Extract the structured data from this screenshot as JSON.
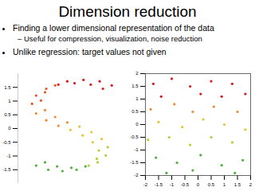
{
  "title": "Dimension reduction",
  "bullets": [
    {
      "text": "Finding a lower dimensional representation of the data",
      "sub": [
        "Useful for compression, visualization, noise reduction"
      ]
    },
    {
      "text": "Unlike regression: target values not given",
      "sub": []
    }
  ],
  "chart_data": [
    {
      "type": "scatter",
      "x": [
        0.9,
        0.6,
        0.2,
        -0.2,
        -0.5,
        -0.75,
        -0.85,
        -0.75,
        -0.5,
        -0.2,
        0.1,
        0.4,
        0.65,
        0.8,
        0.75,
        0.55,
        0.25,
        -0.1,
        -0.45,
        -0.75,
        1.12,
        0.82,
        0.42,
        0.02,
        -0.28,
        -0.53,
        -0.63,
        -0.53,
        -0.28,
        0.02,
        0.32,
        0.62,
        0.87,
        1.02,
        0.97,
        0.77,
        0.47,
        0.12,
        -0.23,
        -0.53
      ],
      "y": [
        1.45,
        1.6,
        1.65,
        1.6,
        1.45,
        1.2,
        0.9,
        0.55,
        0.3,
        0.1,
        -0.05,
        -0.25,
        -0.5,
        -0.8,
        -1.1,
        -1.35,
        -1.5,
        -1.55,
        -1.5,
        -1.35,
        1.57,
        1.72,
        1.77,
        1.72,
        1.57,
        1.32,
        1.02,
        0.67,
        0.42,
        0.22,
        0.07,
        -0.13,
        -0.38,
        -0.68,
        -0.98,
        -1.23,
        -1.38,
        -1.43,
        -1.38,
        -1.23
      ],
      "colors": [
        "#d7191c",
        "#d7191c",
        "#d7191c",
        "#d7191c",
        "#e8552a",
        "#e8552a",
        "#e8552a",
        "#f08a2c",
        "#f08a2c",
        "#f08a2c",
        "#e6c42e",
        "#e6c42e",
        "#e6c42e",
        "#b5cf32",
        "#b5cf32",
        "#b5cf32",
        "#4daf3c",
        "#4daf3c",
        "#4daf3c",
        "#4daf3c",
        "#d7191c",
        "#d7191c",
        "#d7191c",
        "#d7191c",
        "#e8552a",
        "#e8552a",
        "#e8552a",
        "#f08a2c",
        "#f08a2c",
        "#f08a2c",
        "#e6c42e",
        "#e6c42e",
        "#e6c42e",
        "#b5cf32",
        "#b5cf32",
        "#b5cf32",
        "#4daf3c",
        "#4daf3c",
        "#4daf3c",
        "#4daf3c"
      ],
      "xlim": [
        -1.2,
        1.4
      ],
      "ylim": [
        -2,
        2
      ],
      "yticks": [
        -1.5,
        -1,
        -0.5,
        0,
        0.5,
        1,
        1.5
      ],
      "tick_labels": "y"
    },
    {
      "type": "scatter",
      "x": [
        -1.7,
        -1.0,
        -0.3,
        0.5,
        1.3,
        1.8,
        -1.4,
        0.1,
        0.9,
        -1.8,
        -0.9,
        -0.2,
        0.6,
        1.5,
        -1.5,
        -0.6,
        0.2,
        1.0,
        1.8,
        -1.9,
        -1.1,
        -0.3,
        0.5,
        1.3,
        -1.6,
        -0.8,
        0.1,
        0.9,
        1.7,
        -0.2,
        1.4,
        -1.2
      ],
      "y": [
        1.6,
        1.8,
        1.5,
        1.7,
        1.6,
        1.2,
        1.1,
        1.2,
        1.1,
        0.6,
        0.8,
        0.5,
        0.7,
        0.5,
        0.1,
        -0.1,
        0.2,
        0.0,
        -0.2,
        -0.6,
        -0.5,
        -0.8,
        -0.5,
        -0.7,
        -1.3,
        -1.5,
        -1.2,
        -1.6,
        -1.4,
        -1.8,
        -1.9,
        -1.9
      ],
      "colors": [
        "#d7191c",
        "#d7191c",
        "#d7191c",
        "#d7191c",
        "#d7191c",
        "#d7191c",
        "#d7191c",
        "#d7191c",
        "#d7191c",
        "#f08a2c",
        "#f08a2c",
        "#f08a2c",
        "#f08a2c",
        "#f08a2c",
        "#e6c42e",
        "#e6c42e",
        "#e6c42e",
        "#e6c42e",
        "#e6c42e",
        "#b5cf32",
        "#b5cf32",
        "#b5cf32",
        "#b5cf32",
        "#b5cf32",
        "#4daf3c",
        "#4daf3c",
        "#4daf3c",
        "#4daf3c",
        "#4daf3c",
        "#4daf3c",
        "#4daf3c",
        "#4daf3c"
      ],
      "xlim": [
        -2,
        2
      ],
      "ylim": [
        -2,
        2
      ],
      "xticks": [
        -2,
        -1.5,
        -1,
        -0.5,
        0,
        0.5,
        1,
        1.5,
        2
      ],
      "yticks": [
        -2,
        -1.5,
        -1,
        -0.5,
        0,
        0.5,
        1,
        1.5,
        2
      ]
    }
  ]
}
